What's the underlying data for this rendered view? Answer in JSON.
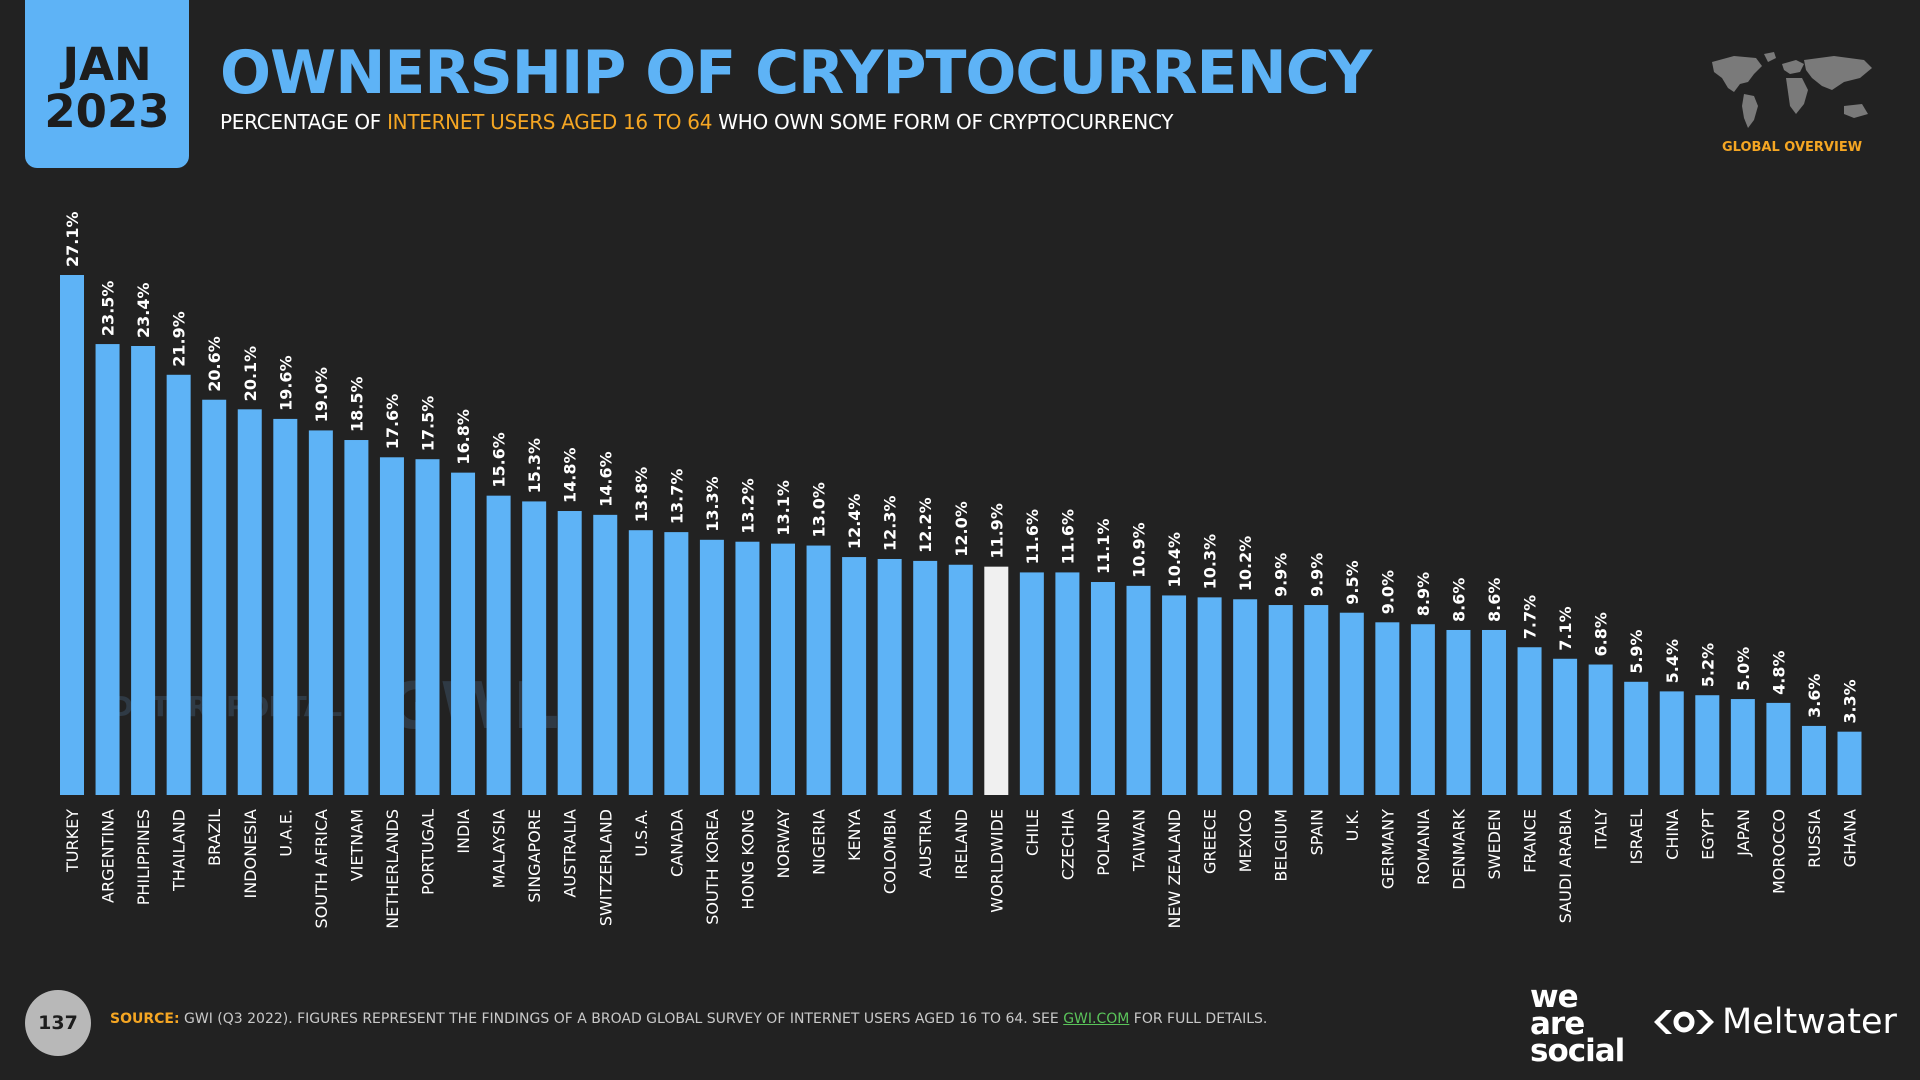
{
  "header": {
    "badge_month": "JAN",
    "badge_year": "2023",
    "title": "OWNERSHIP OF CRYPTOCURRENCY",
    "subtitle_before": "PERCENTAGE OF ",
    "subtitle_highlight": "INTERNET USERS AGED 16 TO 64",
    "subtitle_after": " WHO OWN SOME FORM OF CRYPTOCURRENCY",
    "section_label": "GLOBAL OVERVIEW"
  },
  "colors": {
    "background": "#222222",
    "bar": "#5eb3f6",
    "highlight_bar": "#f0f0f0",
    "accent": "#f5a623"
  },
  "watermarks": {
    "datareportal": "DATAREPORTAL",
    "gwi": "GWI."
  },
  "chart_data": {
    "type": "bar",
    "orientation": "vertical",
    "highlight_category": "WORLDWIDE",
    "value_suffix": "%",
    "categories": [
      "TURKEY",
      "ARGENTINA",
      "PHILIPPINES",
      "THAILAND",
      "BRAZIL",
      "INDONESIA",
      "U.A.E.",
      "SOUTH AFRICA",
      "VIETNAM",
      "NETHERLANDS",
      "PORTUGAL",
      "INDIA",
      "MALAYSIA",
      "SINGAPORE",
      "AUSTRALIA",
      "SWITZERLAND",
      "U.S.A.",
      "CANADA",
      "SOUTH KOREA",
      "HONG KONG",
      "NORWAY",
      "NIGERIA",
      "KENYA",
      "COLOMBIA",
      "AUSTRIA",
      "IRELAND",
      "WORLDWIDE",
      "CHILE",
      "CZECHIA",
      "POLAND",
      "TAIWAN",
      "NEW ZEALAND",
      "GREECE",
      "MEXICO",
      "BELGIUM",
      "SPAIN",
      "U.K.",
      "GERMANY",
      "ROMANIA",
      "DENMARK",
      "SWEDEN",
      "FRANCE",
      "SAUDI ARABIA",
      "ITALY",
      "ISRAEL",
      "CHINA",
      "EGYPT",
      "JAPAN",
      "MOROCCO",
      "RUSSIA",
      "GHANA"
    ],
    "values": [
      27.1,
      23.5,
      23.4,
      21.9,
      20.6,
      20.1,
      19.6,
      19.0,
      18.5,
      17.6,
      17.5,
      16.8,
      15.6,
      15.3,
      14.8,
      14.6,
      13.8,
      13.7,
      13.3,
      13.2,
      13.1,
      13.0,
      12.4,
      12.3,
      12.2,
      12.0,
      11.9,
      11.6,
      11.6,
      11.1,
      10.9,
      10.4,
      10.3,
      10.2,
      9.9,
      9.9,
      9.5,
      9.0,
      8.9,
      8.6,
      8.6,
      7.7,
      7.1,
      6.8,
      5.9,
      5.4,
      5.2,
      5.0,
      4.8,
      3.6,
      3.3
    ],
    "labels": [
      "27.1%",
      "23.5%",
      "23.4%",
      "21.9%",
      "20.6%",
      "20.1%",
      "19.6%",
      "19.0%",
      "18.5%",
      "17.6%",
      "17.5%",
      "16.8%",
      "15.6%",
      "15.3%",
      "14.8%",
      "14.6%",
      "13.8%",
      "13.7%",
      "13.3%",
      "13.2%",
      "13.1%",
      "13.0%",
      "12.4%",
      "12.3%",
      "12.2%",
      "12.0%",
      "11.9%",
      "11.6%",
      "11.6%",
      "11.1%",
      "10.9%",
      "10.4%",
      "10.3%",
      "10.2%",
      "9.9%",
      "9.9%",
      "9.5%",
      "9.0%",
      "8.9%",
      "8.6%",
      "8.6%",
      "7.7%",
      "7.1%",
      "6.8%",
      "5.9%",
      "5.4%",
      "5.2%",
      "5.0%",
      "4.8%",
      "3.6%",
      "3.3%"
    ],
    "ylim": [
      0,
      27.1
    ],
    "grid": false,
    "legend": "none"
  },
  "footer": {
    "page_number": "137",
    "source_label": "SOURCE:",
    "source_text": " GWI (Q3 2022). FIGURES REPRESENT THE FINDINGS OF A BROAD GLOBAL SURVEY OF INTERNET USERS AGED 16 TO 64. SEE ",
    "source_link": "GWI.COM",
    "source_after": " FOR FULL DETAILS.",
    "brand_we": "we",
    "brand_are": "are",
    "brand_social": "social",
    "brand_meltwater": "Meltwater"
  }
}
